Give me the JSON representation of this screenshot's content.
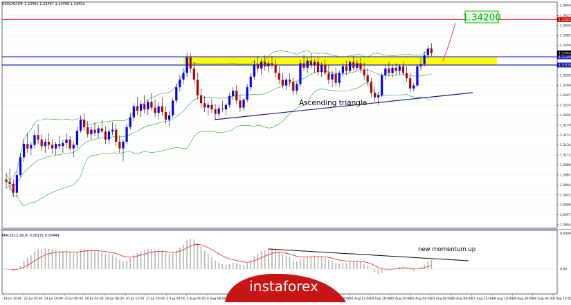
{
  "header": {
    "symbol": "USDCAD,H4",
    "ohlc": "1.33461 1.33467 1.33408 1.33452"
  },
  "indicator_header": "MACD(12,26,9) 0.00171 0.00449",
  "chart_data": [
    {
      "type": "candlestick",
      "symbol": "USDCAD",
      "timeframe": "H4",
      "price_axis_labels": [
        "1.34495",
        "1.34270",
        "1.34045",
        "1.33820",
        "1.33595",
        "1.33370",
        "1.33145",
        "1.32920",
        "1.32695",
        "1.32470",
        "1.32245",
        "1.32020",
        "1.31795",
        "1.31570",
        "1.31345",
        "1.31120",
        "1.30895",
        "1.30670",
        "1.30445",
        "1.30220",
        "1.29995",
        "1.29770",
        "1.29545"
      ],
      "ylim": [
        1.295,
        1.346
      ],
      "time_axis_labels": [
        "19 Jul 2019",
        "22 Jul 16:00",
        "23 Jul 20:00",
        "25 Jul 00:00",
        "26 Jul 04:00",
        "29 Jul 08:00",
        "30 Jul 12:00",
        "31 Jul 20:00",
        "2 Aug 00:00",
        "5 Aug 04:00",
        "6 Aug 08:00",
        "7 Aug 12:00",
        "8 Aug 16:00",
        "9 Aug 20:00",
        "13 Aug 00:00",
        "14 Aug 04:00",
        "15 Aug 08:00",
        "16 Aug 12:00",
        "19 Aug 16:00",
        "20 Aug 20:00",
        "22 Aug 00:00",
        "23 Aug 04:00",
        "26 Aug 08:00",
        "27 Aug 12:00",
        "28 Aug 16:00",
        "29 Aug 20:00",
        "30 Aug 04:00",
        "3 Sep 12:00"
      ],
      "horizontal_lines": [
        {
          "name": "red-resistance",
          "price": 1.34205,
          "color": "#d40000",
          "label": "1.34205"
        },
        {
          "name": "blue-upper",
          "price": 1.33366,
          "color": "#2323c8",
          "label": "1.33366"
        },
        {
          "name": "blue-lower",
          "price": 1.33181,
          "color": "#2323c8",
          "label": "1.33181"
        }
      ],
      "resistance_zone": {
        "from": 1.33181,
        "to": 1.33366,
        "color": "#ffff00"
      },
      "current_price": {
        "price": 1.33452,
        "label": "1.33452"
      },
      "target": {
        "label": "1.34200",
        "color": "#00c800"
      },
      "annotations": [
        "Ascending triangle"
      ],
      "trendline_color": "#1a1a80",
      "bollinger_bands_color": "#1f9e3a",
      "ohlc": [
        [
          1.306,
          1.3075,
          1.304,
          1.3055
        ],
        [
          1.3055,
          1.3085,
          1.3035,
          1.305
        ],
        [
          1.305,
          1.306,
          1.302,
          1.303
        ],
        [
          1.303,
          1.3078,
          1.302,
          1.307
        ],
        [
          1.307,
          1.312,
          1.3065,
          1.311
        ],
        [
          1.311,
          1.315,
          1.31,
          1.314
        ],
        [
          1.314,
          1.3165,
          1.312,
          1.313
        ],
        [
          1.313,
          1.3145,
          1.3115,
          1.3138
        ],
        [
          1.3138,
          1.317,
          1.313,
          1.316
        ],
        [
          1.316,
          1.3185,
          1.314,
          1.315
        ],
        [
          1.315,
          1.3162,
          1.3125,
          1.3135
        ],
        [
          1.3135,
          1.3152,
          1.312,
          1.3145
        ],
        [
          1.3145,
          1.3165,
          1.3128,
          1.3138
        ],
        [
          1.3138,
          1.315,
          1.3118,
          1.313
        ],
        [
          1.313,
          1.3145,
          1.3115,
          1.314
        ],
        [
          1.314,
          1.3158,
          1.3128,
          1.3135
        ],
        [
          1.3135,
          1.315,
          1.312,
          1.3142
        ],
        [
          1.3142,
          1.3165,
          1.313,
          1.315
        ],
        [
          1.315,
          1.3158,
          1.3125,
          1.313
        ],
        [
          1.313,
          1.3145,
          1.311,
          1.3138
        ],
        [
          1.3138,
          1.318,
          1.313,
          1.317
        ],
        [
          1.317,
          1.3205,
          1.3165,
          1.3195
        ],
        [
          1.3195,
          1.321,
          1.317,
          1.3178
        ],
        [
          1.3178,
          1.3192,
          1.3155,
          1.3162
        ],
        [
          1.3162,
          1.318,
          1.315,
          1.3172
        ],
        [
          1.3172,
          1.3188,
          1.3158,
          1.3165
        ],
        [
          1.3165,
          1.3182,
          1.3152,
          1.3175
        ],
        [
          1.3175,
          1.3195,
          1.3165,
          1.3168
        ],
        [
          1.3168,
          1.318,
          1.314,
          1.315
        ],
        [
          1.315,
          1.3175,
          1.314,
          1.3168
        ],
        [
          1.3168,
          1.319,
          1.316,
          1.3172
        ],
        [
          1.3172,
          1.3185,
          1.3135,
          1.3145
        ],
        [
          1.3145,
          1.316,
          1.312,
          1.313
        ],
        [
          1.313,
          1.315,
          1.31,
          1.3145
        ],
        [
          1.3145,
          1.3185,
          1.314,
          1.3178
        ],
        [
          1.3178,
          1.321,
          1.3172,
          1.32
        ],
        [
          1.32,
          1.3232,
          1.3192,
          1.3225
        ],
        [
          1.3225,
          1.3245,
          1.3205,
          1.3215
        ],
        [
          1.3215,
          1.3238,
          1.32,
          1.323
        ],
        [
          1.323,
          1.325,
          1.321,
          1.3218
        ],
        [
          1.3218,
          1.324,
          1.3205,
          1.3235
        ],
        [
          1.3235,
          1.3255,
          1.3215,
          1.3222
        ],
        [
          1.3222,
          1.324,
          1.32,
          1.321
        ],
        [
          1.321,
          1.3235,
          1.3195,
          1.3225
        ],
        [
          1.3225,
          1.3245,
          1.3205,
          1.3212
        ],
        [
          1.3212,
          1.3225,
          1.3185,
          1.3195
        ],
        [
          1.3195,
          1.3215,
          1.318,
          1.3205
        ],
        [
          1.3205,
          1.3245,
          1.32,
          1.3238
        ],
        [
          1.3238,
          1.3275,
          1.3232,
          1.3268
        ],
        [
          1.3268,
          1.3295,
          1.3258,
          1.3285
        ],
        [
          1.3285,
          1.3312,
          1.3275,
          1.33
        ],
        [
          1.33,
          1.3345,
          1.329,
          1.3335
        ],
        [
          1.3335,
          1.3345,
          1.33,
          1.331
        ],
        [
          1.331,
          1.3325,
          1.3275,
          1.3285
        ],
        [
          1.3285,
          1.33,
          1.324,
          1.325
        ],
        [
          1.325,
          1.3265,
          1.322,
          1.3232
        ],
        [
          1.3232,
          1.3248,
          1.3212,
          1.3222
        ],
        [
          1.3222,
          1.3235,
          1.3205,
          1.3228
        ],
        [
          1.3228,
          1.3242,
          1.321,
          1.3218
        ],
        [
          1.3218,
          1.323,
          1.3195,
          1.3208
        ],
        [
          1.3208,
          1.3228,
          1.32,
          1.322
        ],
        [
          1.322,
          1.3238,
          1.3212,
          1.3218
        ],
        [
          1.3218,
          1.3232,
          1.3205,
          1.3228
        ],
        [
          1.3228,
          1.3255,
          1.3222,
          1.3248
        ],
        [
          1.3248,
          1.3268,
          1.3238,
          1.326
        ],
        [
          1.326,
          1.3272,
          1.323,
          1.3238
        ],
        [
          1.3238,
          1.325,
          1.3212,
          1.3222
        ],
        [
          1.3222,
          1.3245,
          1.3215,
          1.324
        ],
        [
          1.324,
          1.3275,
          1.3235,
          1.3268
        ],
        [
          1.3268,
          1.33,
          1.326,
          1.3292
        ],
        [
          1.3292,
          1.333,
          1.3285,
          1.332
        ],
        [
          1.332,
          1.3338,
          1.33,
          1.331
        ],
        [
          1.331,
          1.3332,
          1.3296,
          1.3325
        ],
        [
          1.3325,
          1.334,
          1.3305,
          1.3315
        ],
        [
          1.3315,
          1.333,
          1.33,
          1.3322
        ],
        [
          1.3322,
          1.3338,
          1.331,
          1.3318
        ],
        [
          1.3318,
          1.3332,
          1.329,
          1.33
        ],
        [
          1.33,
          1.3315,
          1.3275,
          1.3285
        ],
        [
          1.3285,
          1.33,
          1.3265,
          1.3272
        ],
        [
          1.3272,
          1.329,
          1.3262,
          1.3285
        ],
        [
          1.3285,
          1.33,
          1.327,
          1.328
        ],
        [
          1.328,
          1.329,
          1.325,
          1.326
        ],
        [
          1.326,
          1.328,
          1.3252,
          1.3275
        ],
        [
          1.3275,
          1.333,
          1.327,
          1.3322
        ],
        [
          1.3322,
          1.3342,
          1.3305,
          1.3312
        ],
        [
          1.3312,
          1.3335,
          1.33,
          1.3328
        ],
        [
          1.3328,
          1.3345,
          1.331,
          1.3318
        ],
        [
          1.3318,
          1.3332,
          1.33,
          1.3325
        ],
        [
          1.3325,
          1.3336,
          1.3295,
          1.3302
        ],
        [
          1.3302,
          1.3325,
          1.3292,
          1.3318
        ],
        [
          1.3318,
          1.333,
          1.3295,
          1.33
        ],
        [
          1.33,
          1.3318,
          1.3275,
          1.3285
        ],
        [
          1.3285,
          1.3305,
          1.3268,
          1.3298
        ],
        [
          1.3298,
          1.3312,
          1.327,
          1.3278
        ],
        [
          1.3278,
          1.3305,
          1.327,
          1.33
        ],
        [
          1.33,
          1.3322,
          1.3292,
          1.3315
        ],
        [
          1.3315,
          1.3328,
          1.3295,
          1.3305
        ],
        [
          1.3305,
          1.333,
          1.33,
          1.3325
        ],
        [
          1.3325,
          1.3338,
          1.3305,
          1.3312
        ],
        [
          1.3312,
          1.333,
          1.3305,
          1.3322
        ],
        [
          1.3322,
          1.3335,
          1.33,
          1.3308
        ],
        [
          1.3308,
          1.3325,
          1.3285,
          1.3295
        ],
        [
          1.3295,
          1.331,
          1.327,
          1.328
        ],
        [
          1.328,
          1.329,
          1.3245,
          1.3255
        ],
        [
          1.3255,
          1.3268,
          1.3235,
          1.3245
        ],
        [
          1.3245,
          1.3258,
          1.3228,
          1.325
        ],
        [
          1.325,
          1.33,
          1.3245,
          1.3295
        ],
        [
          1.3295,
          1.3318,
          1.3285,
          1.331
        ],
        [
          1.331,
          1.3325,
          1.3292,
          1.33
        ],
        [
          1.33,
          1.3318,
          1.329,
          1.3312
        ],
        [
          1.3312,
          1.3322,
          1.3295,
          1.3305
        ],
        [
          1.3305,
          1.332,
          1.3296,
          1.3315
        ],
        [
          1.3315,
          1.3325,
          1.3295,
          1.33
        ],
        [
          1.33,
          1.3315,
          1.328,
          1.3288
        ],
        [
          1.3288,
          1.33,
          1.3255,
          1.3265
        ],
        [
          1.3265,
          1.3278,
          1.3258,
          1.3272
        ],
        [
          1.3272,
          1.332,
          1.3268,
          1.3315
        ],
        [
          1.3315,
          1.3335,
          1.3305,
          1.332
        ],
        [
          1.332,
          1.3348,
          1.3315,
          1.334
        ],
        [
          1.334,
          1.3362,
          1.3332,
          1.3355
        ],
        [
          1.3355,
          1.3367,
          1.3338,
          1.3345
        ]
      ]
    },
    {
      "type": "bar",
      "indicator": "MACD",
      "params": [
        12,
        26,
        9
      ],
      "axis_labels": [
        "0.000000",
        "0.00"
      ],
      "annotations": [
        "new momentum up"
      ],
      "signal_color": "#e02020",
      "histogram_color": "#b4b4b4"
    }
  ],
  "watermark": "instaforex"
}
